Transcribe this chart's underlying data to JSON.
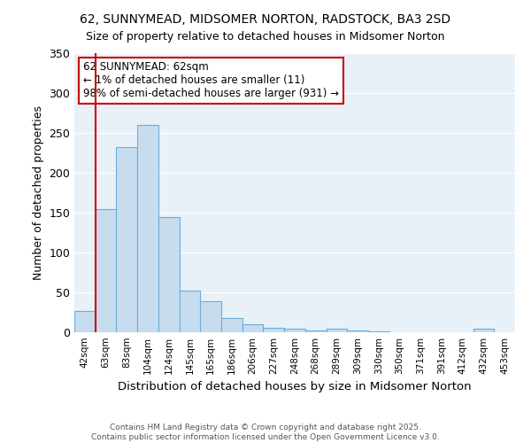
{
  "title": "62, SUNNYMEAD, MIDSOMER NORTON, RADSTOCK, BA3 2SD",
  "subtitle": "Size of property relative to detached houses in Midsomer Norton",
  "xlabel": "Distribution of detached houses by size in Midsomer Norton",
  "ylabel": "Number of detached properties",
  "bar_color": "#c8dcf0",
  "bar_edge_color": "#6baed6",
  "background_color": "#e8f0f8",
  "grid_color": "#ffffff",
  "annotation_box_color": "#cc0000",
  "vline_color": "#cc0000",
  "vline_x": 1,
  "categories": [
    "42sqm",
    "63sqm",
    "83sqm",
    "104sqm",
    "124sqm",
    "145sqm",
    "165sqm",
    "186sqm",
    "206sqm",
    "227sqm",
    "248sqm",
    "268sqm",
    "289sqm",
    "309sqm",
    "330sqm",
    "350sqm",
    "371sqm",
    "391sqm",
    "412sqm",
    "432sqm",
    "453sqm"
  ],
  "values": [
    27,
    155,
    232,
    260,
    145,
    52,
    39,
    18,
    10,
    6,
    5,
    2,
    4,
    2,
    1,
    0,
    0,
    0,
    0,
    4,
    0
  ],
  "annotation_lines": [
    "62 SUNNYMEAD: 62sqm",
    "← 1% of detached houses are smaller (11)",
    "98% of semi-detached houses are larger (931) →"
  ],
  "footer_lines": [
    "Contains HM Land Registry data © Crown copyright and database right 2025.",
    "Contains public sector information licensed under the Open Government Licence v3.0."
  ],
  "ylim": [
    0,
    350
  ],
  "yticks": [
    0,
    50,
    100,
    150,
    200,
    250,
    300,
    350
  ],
  "fig_width": 6.0,
  "fig_height": 5.0,
  "dpi": 100
}
